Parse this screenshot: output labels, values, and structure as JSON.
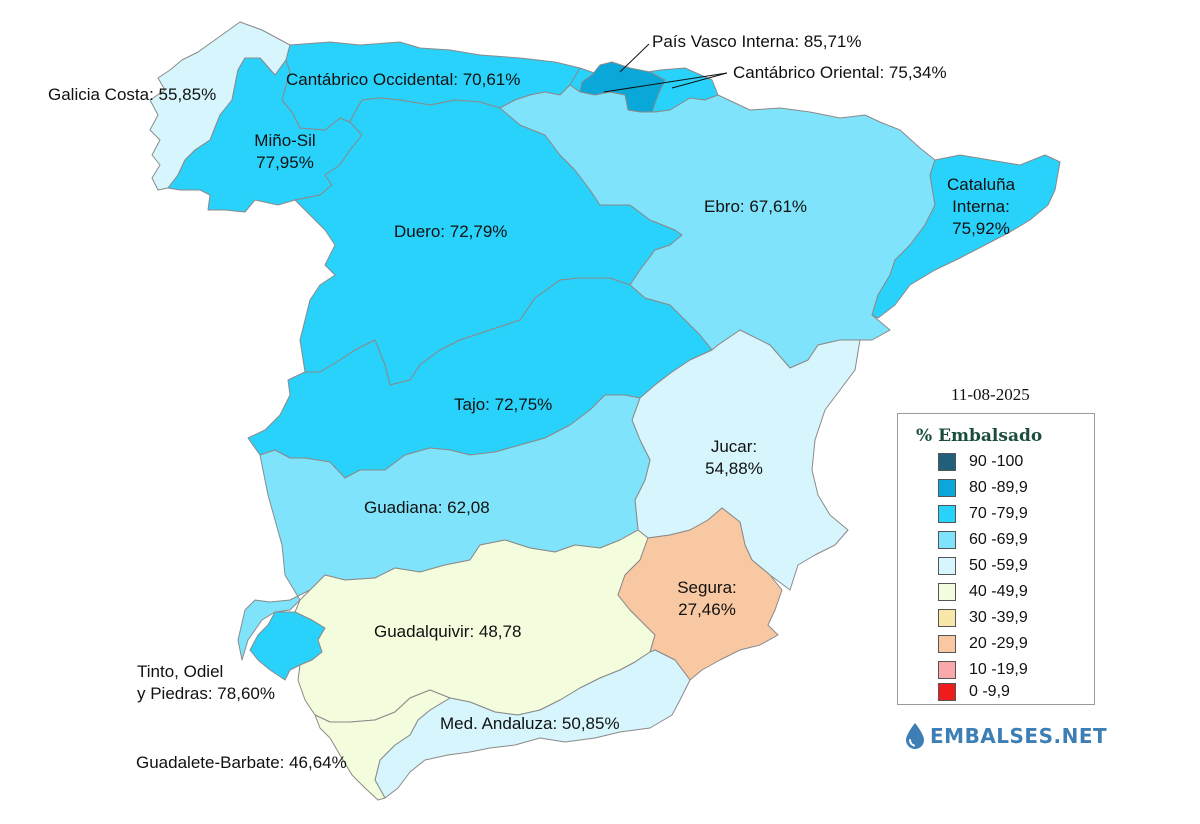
{
  "date": "11-08-2025",
  "legend": {
    "title": "% Embalsado",
    "items": [
      {
        "label": "90 -100",
        "color": "#20607a"
      },
      {
        "label": "80 -89,9",
        "color": "#0aa8d8"
      },
      {
        "label": "70 -79,9",
        "color": "#29d2fb"
      },
      {
        "label": "60 -69,9",
        "color": "#7fe4fb"
      },
      {
        "label": "50 -59,9",
        "color": "#d6f5fc"
      },
      {
        "label": "40 -49,9",
        "color": "#f3fcdc"
      },
      {
        "label": "30 -39,9",
        "color": "#f8e7a6"
      },
      {
        "label": "20 -29,9",
        "color": "#f8c8a2"
      },
      {
        "label": "10 -19,9",
        "color": "#f8a9a9"
      },
      {
        "label": "0 -9,9",
        "color": "#f01c1c"
      }
    ]
  },
  "basins": {
    "galicia_costa": {
      "label": "Galicia Costa: 55,85%",
      "color": "#d6f5fc"
    },
    "mino_sil": {
      "line1": "Miño-Sil",
      "line2": "77,95%",
      "color": "#29d2fb"
    },
    "cantabrico_occidental": {
      "label": "Cantábrico Occidental: 70,61%",
      "color": "#29d2fb"
    },
    "pais_vasco": {
      "label": "País Vasco Interna: 85,71%",
      "color": "#0aa8d8"
    },
    "cantabrico_oriental": {
      "label": "Cantábrico Oriental: 75,34%",
      "color": "#29d2fb"
    },
    "duero": {
      "label": "Duero: 72,79%",
      "color": "#29d2fb"
    },
    "ebro": {
      "label": "Ebro: 67,61%",
      "color": "#7fe4fb"
    },
    "cataluna": {
      "line1": "Cataluña",
      "line2": "Interna:",
      "line3": "75,92%",
      "color": "#29d2fb"
    },
    "tajo": {
      "label": "Tajo: 72,75%",
      "color": "#29d2fb"
    },
    "jucar": {
      "line1": "Jucar:",
      "line2": "54,88%",
      "color": "#d6f5fc"
    },
    "guadiana": {
      "label": "Guadiana: 62,08",
      "color": "#7fe4fb"
    },
    "segura": {
      "line1": "Segura:",
      "line2": "27,46%",
      "color": "#f8c8a2"
    },
    "guadalquivir": {
      "label": "Guadalquivir: 48,78",
      "color": "#f3fcdc"
    },
    "tinto": {
      "line1": "Tinto, Odiel",
      "line2": "y Piedras: 78,60%",
      "color": "#29d2fb"
    },
    "med_andaluza": {
      "label": "Med. Andaluza: 50,85%",
      "color": "#d6f5fc"
    },
    "guadalete": {
      "label": "Guadalete-Barbate: 46,64%",
      "color": "#f3fcdc"
    }
  },
  "brand": {
    "name": "EMBALSES.NET",
    "icon": "water-drop-icon",
    "color": "#3d7fb5"
  }
}
